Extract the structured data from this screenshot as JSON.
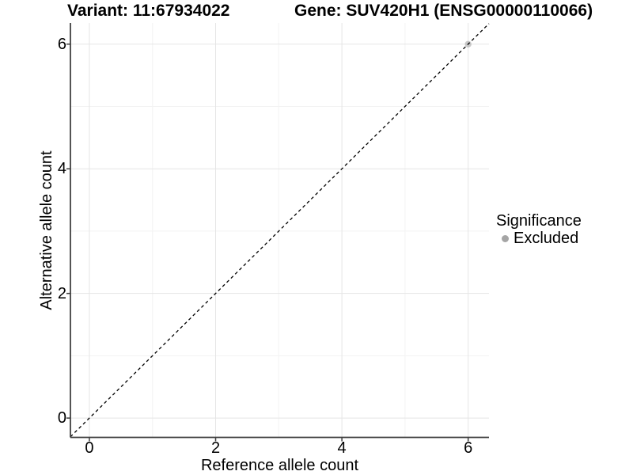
{
  "chart_data": {
    "type": "scatter",
    "title_left": "Variant: 11:67934022",
    "title_right": "Gene: SUV420H1 (ENSG00000110066)",
    "xlabel": "Reference allele count",
    "ylabel": "Alternative allele count",
    "xlim": [
      -0.3,
      6.33
    ],
    "ylim": [
      -0.31,
      6.34
    ],
    "x_ticks": [
      0,
      2,
      4,
      6
    ],
    "y_ticks": [
      0,
      2,
      4,
      6
    ],
    "x_minor_ticks": [
      1,
      3,
      5
    ],
    "y_minor_ticks": [
      1,
      3,
      5
    ],
    "grid": "major+minor",
    "points": [
      {
        "x": 6,
        "y": 6,
        "series": "Excluded"
      }
    ],
    "abline": {
      "slope": 1,
      "intercept": 0,
      "linetype": "dashed"
    },
    "legend": {
      "title": "Significance",
      "position": "right",
      "entries": [
        {
          "label": "Excluded",
          "color": "#a5a5a5"
        }
      ]
    },
    "colors": {
      "point": "#a5a5a5",
      "point_opacity": 0.6,
      "grid_major": "#e5e5e5",
      "grid_minor": "#f3f3f3",
      "axis": "#404040",
      "dashed_line": "#000000",
      "background": "#ffffff",
      "text": "#000000"
    }
  }
}
